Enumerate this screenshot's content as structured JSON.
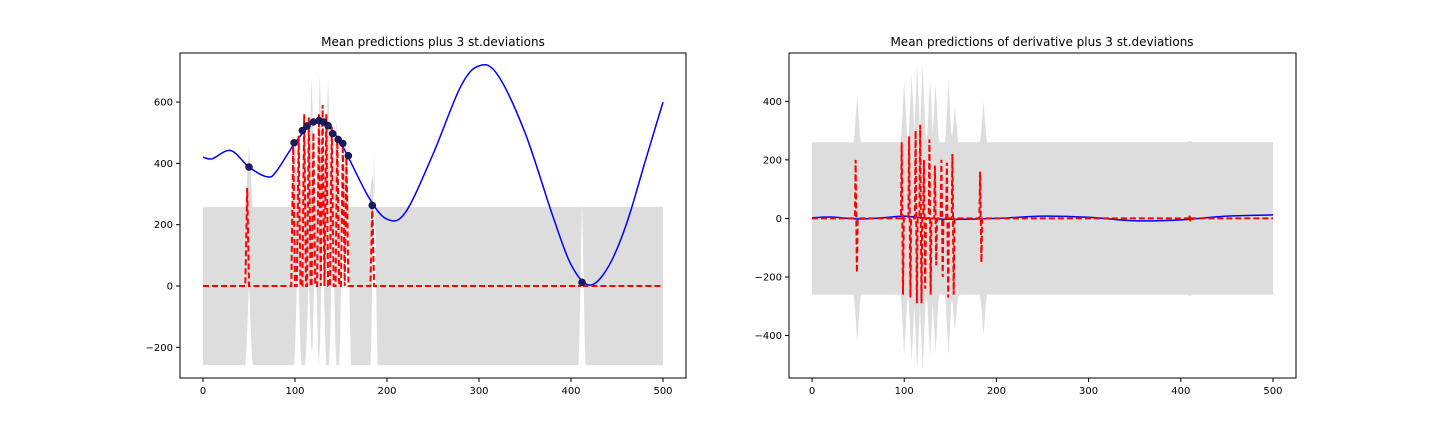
{
  "chart_data": [
    {
      "type": "line",
      "title": "Mean predictions plus 3 st.deviations",
      "xlabel": "",
      "ylabel": "",
      "xlim": [
        -25,
        525
      ],
      "ylim": [
        -300,
        760
      ],
      "xticks": [
        0,
        100,
        200,
        300,
        400,
        500
      ],
      "yticks": [
        -200,
        0,
        200,
        400,
        600
      ],
      "grid": false,
      "colors": {
        "band": "#dddddd",
        "mean": "#0000ff",
        "std": "#ff0000",
        "points": "#1a1a66"
      },
      "band": {
        "base": 258,
        "peaks": [
          [
            50,
            460
          ],
          [
            100,
            480
          ],
          [
            110,
            560
          ],
          [
            118,
            680
          ],
          [
            127,
            690
          ],
          [
            136,
            680
          ],
          [
            145,
            540
          ],
          [
            155,
            480
          ],
          [
            184,
            365
          ],
          [
            412,
            258
          ]
        ],
        "notches": [
          [
            50,
            10
          ],
          [
            103,
            100
          ],
          [
            115,
            20
          ],
          [
            122,
            140
          ],
          [
            130,
            180
          ],
          [
            141,
            200
          ],
          [
            152,
            350
          ],
          [
            157,
            420
          ],
          [
            186,
            440
          ],
          [
            412,
            280
          ]
        ]
      },
      "std_curve": {
        "base": 0,
        "spikes": [
          [
            48,
            320
          ],
          [
            98,
            470
          ],
          [
            104,
            490
          ],
          [
            110,
            560
          ],
          [
            115,
            550
          ],
          [
            120,
            500
          ],
          [
            126,
            560
          ],
          [
            130,
            590
          ],
          [
            134,
            560
          ],
          [
            140,
            520
          ],
          [
            146,
            490
          ],
          [
            152,
            460
          ],
          [
            156,
            420
          ],
          [
            184,
            262
          ],
          [
            412,
            12
          ]
        ]
      },
      "observations": {
        "x": [
          50,
          99,
          108,
          113,
          120,
          126,
          131,
          136,
          141,
          147,
          152,
          158,
          184,
          412
        ],
        "y": [
          388,
          467,
          507,
          522,
          535,
          540,
          535,
          523,
          497,
          478,
          465,
          425,
          263,
          12
        ]
      },
      "mean_curve": {
        "x": [
          0,
          10,
          30,
          50,
          70,
          80,
          100,
          120,
          130,
          150,
          180,
          200,
          220,
          250,
          280,
          300,
          320,
          350,
          380,
          400,
          420,
          440,
          460,
          480,
          500
        ],
        "y": [
          420,
          415,
          442,
          388,
          356,
          375,
          467,
          535,
          540,
          465,
          290,
          218,
          240,
          430,
          650,
          718,
          690,
          500,
          230,
          70,
          3,
          60,
          200,
          400,
          600
        ]
      }
    },
    {
      "type": "line",
      "title": "Mean predictions of derivative plus 3 st.deviations",
      "xlabel": "",
      "ylabel": "",
      "xlim": [
        -25,
        525
      ],
      "ylim": [
        -545,
        565
      ],
      "xticks": [
        0,
        100,
        200,
        300,
        400,
        500
      ],
      "yticks": [
        -400,
        -200,
        0,
        200,
        400
      ],
      "grid": false,
      "colors": {
        "band": "#dddddd",
        "mean": "#0000ff",
        "std": "#ff0000"
      },
      "band": {
        "half_width": 260,
        "peaks": [
          [
            49,
            420
          ],
          [
            100,
            470
          ],
          [
            108,
            490
          ],
          [
            114,
            520
          ],
          [
            120,
            520
          ],
          [
            128,
            470
          ],
          [
            134,
            460
          ],
          [
            148,
            470
          ],
          [
            155,
            380
          ],
          [
            186,
            400
          ],
          [
            410,
            265
          ]
        ]
      },
      "std_curve": {
        "spikes": [
          [
            48,
            200,
            -185
          ],
          [
            98,
            260,
            -260
          ],
          [
            106,
            280,
            -270
          ],
          [
            113,
            300,
            -290
          ],
          [
            118,
            320,
            -290
          ],
          [
            122,
            200,
            -240
          ],
          [
            128,
            270,
            -260
          ],
          [
            134,
            180,
            -160
          ],
          [
            141,
            200,
            -200
          ],
          [
            147,
            190,
            -270
          ],
          [
            153,
            220,
            -260
          ],
          [
            183,
            160,
            -150
          ],
          [
            410,
            12,
            -12
          ]
        ]
      },
      "mean_curve": {
        "x": [
          0,
          20,
          50,
          80,
          100,
          120,
          150,
          200,
          250,
          300,
          350,
          400,
          450,
          500
        ],
        "y": [
          2,
          5,
          -2,
          3,
          8,
          2,
          -3,
          0,
          8,
          4,
          -8,
          -5,
          8,
          12
        ]
      }
    }
  ]
}
